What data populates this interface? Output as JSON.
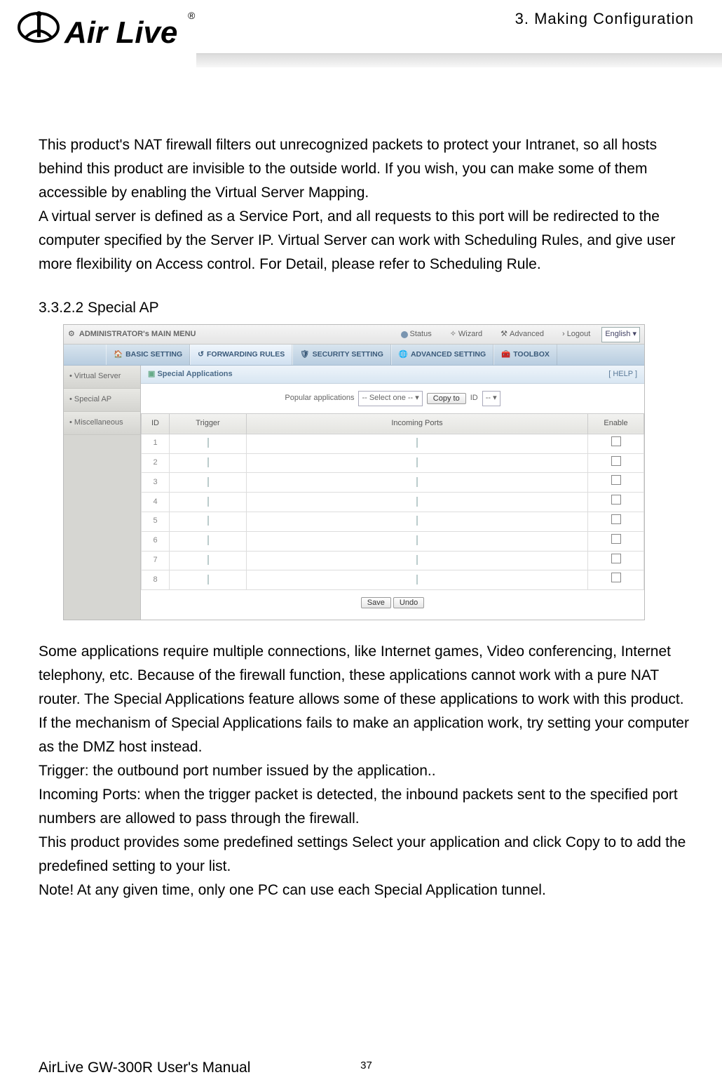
{
  "header": {
    "chapter": "3.  Making  Configuration",
    "logo_text": "Air Live",
    "logo_reg": "®"
  },
  "body": {
    "p1": "This product's NAT firewall filters out unrecognized packets to protect your Intranet, so all hosts behind this product are invisible to the outside world. If you wish, you can make some of them accessible by enabling the Virtual Server Mapping.",
    "p2": "A virtual server is defined as a Service Port, and all requests to this port will be redirected to the computer specified by the Server IP.    Virtual Server can work with Scheduling Rules, and give user more flexibility on Access control. For Detail, please refer to Scheduling Rule.",
    "section": "3.3.2.2 Special AP",
    "p3": "Some applications require multiple connections, like Internet games, Video conferencing, Internet telephony, etc. Because of the firewall function, these applications cannot work with a pure NAT router. The Special Applications feature allows some of these applications to work with this product. If the mechanism of Special Applications fails to make an application work, try setting your computer as the DMZ host instead.",
    "p4": "Trigger: the outbound port number issued by the application..",
    "p5": "Incoming Ports: when the trigger packet is detected, the inbound packets sent to the specified port numbers are allowed to pass through the firewall.",
    "p6": "This product provides some predefined settings Select your application and click Copy to to add the predefined setting to your list.",
    "p7": "Note! At any given time, only one PC can use each Special Application tunnel."
  },
  "screenshot": {
    "admin_title": "ADMINISTRATOR's MAIN MENU",
    "top_links": {
      "status": "Status",
      "wizard": "Wizard",
      "advanced": "Advanced",
      "logout": "› Logout"
    },
    "lang": "English",
    "tabs": {
      "basic": "BASIC SETTING",
      "forwarding": "FORWARDING RULES",
      "security": "SECURITY SETTING",
      "advanced": "ADVANCED SETTING",
      "toolbox": "TOOLBOX"
    },
    "sidebar": {
      "vs": "Virtual Server",
      "sap": "Special AP",
      "misc": "Miscellaneous"
    },
    "panel": {
      "title": "Special Applications",
      "help": "[ HELP ]",
      "popular_label": "Popular applications",
      "popular_select": "-- Select one --",
      "copy_btn": "Copy to",
      "id_label": "ID",
      "id_select": "--",
      "columns": {
        "id": "ID",
        "trigger": "Trigger",
        "incoming": "Incoming Ports",
        "enable": "Enable"
      },
      "rows": [
        "1",
        "2",
        "3",
        "4",
        "5",
        "6",
        "7",
        "8"
      ],
      "save": "Save",
      "undo": "Undo"
    },
    "colors": {
      "topbar_bg_top": "#f5f5f5",
      "topbar_bg_bot": "#e5e5e5",
      "tabbar_bg_top": "#d8e4ee",
      "tabbar_bg_bot": "#b8cde0",
      "sidebar_bg": "#d6d6d2",
      "panel_head_top": "#eef4fa",
      "panel_head_bot": "#d8e6f2",
      "th_bg_top": "#f2f2f0",
      "th_bg_bot": "#e4e4e0",
      "border": "#cccccc"
    }
  },
  "footer": {
    "manual": "AirLive GW-300R User's Manual",
    "page": "37"
  }
}
